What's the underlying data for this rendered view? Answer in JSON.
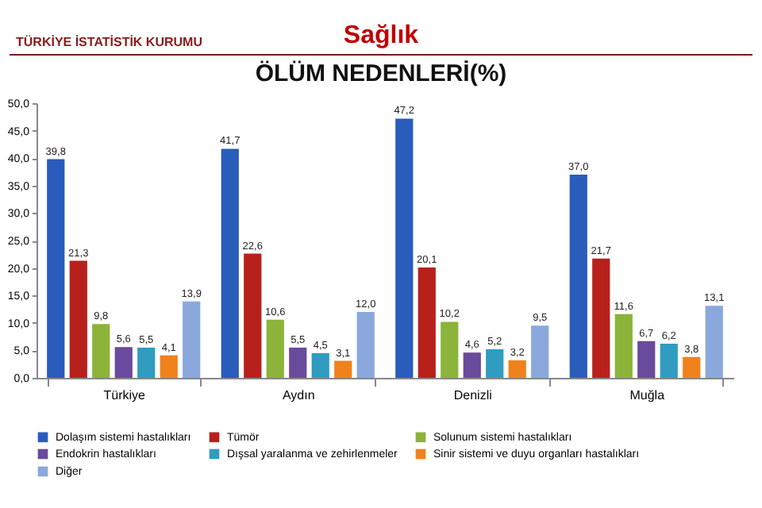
{
  "chart_data": {
    "type": "bar",
    "title": "Sağlık",
    "subtitle": "ÖLÜM NEDENLERİ(%)",
    "annotations": [
      "TÜRKİYE İSTATİSTİK KURUMU"
    ],
    "categories": [
      "Türkiye",
      "Aydın",
      "Denizli",
      "Muğla"
    ],
    "series": [
      {
        "name": "Dolaşım sistemi hastalıkları",
        "color": "#2a5cbc",
        "values": [
          39.8,
          41.7,
          47.2,
          37.0
        ],
        "value_labels": [
          "39,8",
          "41,7",
          "47,2",
          "37,0"
        ]
      },
      {
        "name": "Tümör",
        "color": "#b8201c",
        "values": [
          21.3,
          22.6,
          20.1,
          21.7
        ],
        "value_labels": [
          "21,3",
          "22,6",
          "20,1",
          "21,7"
        ]
      },
      {
        "name": "Solunum sistemi hastalıkları",
        "color": "#8cb33a",
        "values": [
          9.8,
          10.6,
          10.2,
          11.6
        ],
        "value_labels": [
          "9,8",
          "10,6",
          "10,2",
          "11,6"
        ]
      },
      {
        "name": "Endokrin hastalıkları",
        "color": "#6a4a9c",
        "values": [
          5.6,
          5.5,
          4.6,
          6.7
        ],
        "value_labels": [
          "5,6",
          "5,5",
          "4,6",
          "6,7"
        ]
      },
      {
        "name": "Dışsal yaralanma ve zehirlenmeler",
        "color": "#2f9cc0",
        "values": [
          5.5,
          4.5,
          5.2,
          6.2
        ],
        "value_labels": [
          "5,5",
          "4,5",
          "5,2",
          "6,2"
        ]
      },
      {
        "name": "Sinir sistemi ve duyu organları hastalıkları",
        "color": "#f0821c",
        "values": [
          4.1,
          3.1,
          3.2,
          3.8
        ],
        "value_labels": [
          "4,1",
          "3,1",
          "3,2",
          "3,8"
        ]
      },
      {
        "name": "Diğer",
        "color": "#8aa8dc",
        "values": [
          13.9,
          12.0,
          9.5,
          13.1
        ],
        "value_labels": [
          "13,9",
          "12,0",
          "9,5",
          "13,1"
        ]
      }
    ],
    "ylim": [
      0,
      50
    ],
    "yticks": [
      {
        "value": 0,
        "label": "0,0"
      },
      {
        "value": 5,
        "label": "5,0"
      },
      {
        "value": 10,
        "label": "10,0"
      },
      {
        "value": 15,
        "label": "15,0"
      },
      {
        "value": 20,
        "label": "20,0"
      },
      {
        "value": 25,
        "label": "25,0"
      },
      {
        "value": 30,
        "label": "30,0"
      },
      {
        "value": 35,
        "label": "35,0"
      },
      {
        "value": 40,
        "label": "40,0"
      },
      {
        "value": 45,
        "label": "45,0"
      },
      {
        "value": 50,
        "label": "50,0"
      }
    ],
    "legend": "bottom"
  }
}
